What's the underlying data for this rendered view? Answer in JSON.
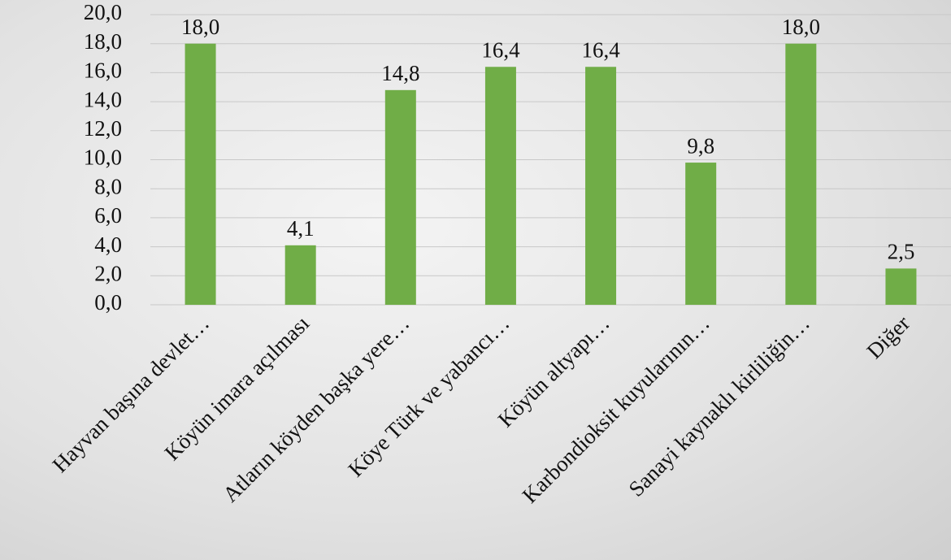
{
  "chart_data": {
    "type": "bar",
    "categories": [
      "Hayvan başına devlet…",
      "Köyün imara açılması",
      "Atların köyden başka yere…",
      "Köye Türk ve yabancı…",
      "Köyün altyapı…",
      "Karbondioksit kuyularının…",
      "Sanayi kaynaklı kirliliğin…",
      "Diğer"
    ],
    "values": [
      18.0,
      4.1,
      14.8,
      16.4,
      16.4,
      9.8,
      18.0,
      2.5
    ],
    "value_labels": [
      "18,0",
      "4,1",
      "14,8",
      "16,4",
      "16,4",
      "9,8",
      "18,0",
      "2,5"
    ],
    "color": "#70ad47",
    "ylim": [
      0,
      20
    ],
    "yticks": [
      {
        "value": 0,
        "label": "0,0"
      },
      {
        "value": 2,
        "label": "2,0"
      },
      {
        "value": 4,
        "label": "4,0"
      },
      {
        "value": 6,
        "label": "6,0"
      },
      {
        "value": 8,
        "label": "8,0"
      },
      {
        "value": 10,
        "label": "10,0"
      },
      {
        "value": 12,
        "label": "12,0"
      },
      {
        "value": 14,
        "label": "14,0"
      },
      {
        "value": 16,
        "label": "16,0"
      },
      {
        "value": 18,
        "label": "18,0"
      },
      {
        "value": 20,
        "label": "20,0"
      }
    ],
    "grid": true
  }
}
